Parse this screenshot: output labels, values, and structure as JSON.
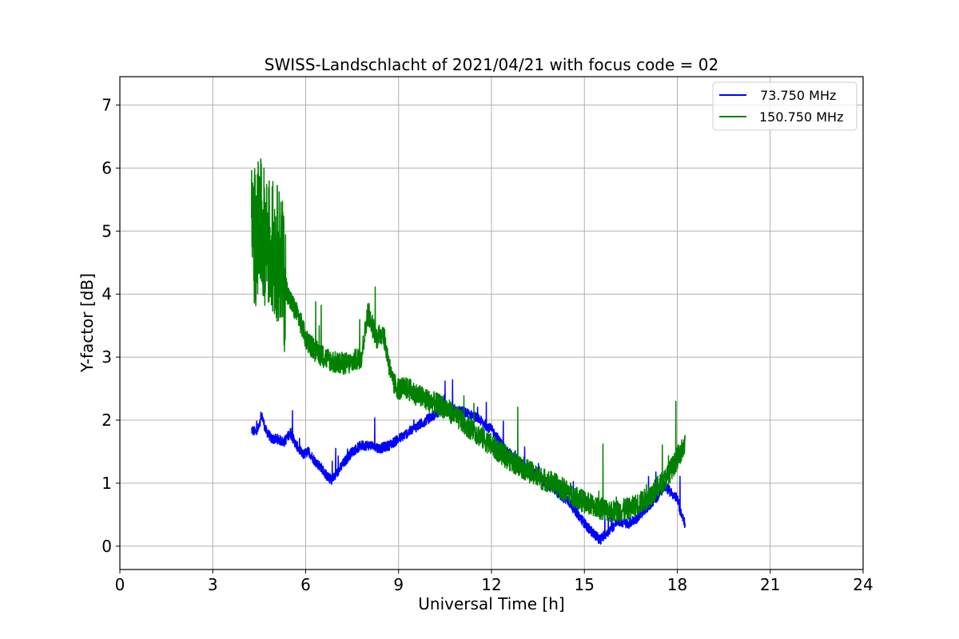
{
  "chart_data": {
    "type": "line",
    "title": "SWISS-Landschlacht of 2021/04/21 with focus code = 02",
    "xlabel": "Universal Time [h]",
    "ylabel": "Y-factor [dB]",
    "xlim": [
      0,
      24
    ],
    "ylim": [
      -0.37,
      7.45
    ],
    "xticks": [
      0,
      3,
      6,
      9,
      12,
      15,
      18,
      21,
      24
    ],
    "yticks": [
      0,
      1,
      2,
      3,
      4,
      5,
      6,
      7
    ],
    "grid": true,
    "legend_position": "top-right",
    "series": [
      {
        "name": " 73.750 MHz",
        "color": "#0000ff",
        "x": [
          4.25,
          4.4,
          4.5,
          4.6,
          4.7,
          4.9,
          5.1,
          5.3,
          5.5,
          5.7,
          5.9,
          6.1,
          6.3,
          6.5,
          6.7,
          6.85,
          7.0,
          7.2,
          7.5,
          7.8,
          8.1,
          8.4,
          8.7,
          9.0,
          9.3,
          9.6,
          9.9,
          10.2,
          10.6,
          11.0,
          11.5,
          12.0,
          12.5,
          13.0,
          13.5,
          14.0,
          14.5,
          14.8,
          15.1,
          15.3,
          15.5,
          15.8,
          16.1,
          16.4,
          16.7,
          17.0,
          17.3,
          17.6,
          17.8,
          18.0,
          18.1,
          18.25
        ],
        "y": [
          1.85,
          1.8,
          1.9,
          2.05,
          1.85,
          1.7,
          1.7,
          1.65,
          1.8,
          1.6,
          1.45,
          1.5,
          1.35,
          1.25,
          1.1,
          1.05,
          1.15,
          1.3,
          1.5,
          1.6,
          1.6,
          1.55,
          1.6,
          1.7,
          1.8,
          1.9,
          2.0,
          2.1,
          2.2,
          2.15,
          2.05,
          1.85,
          1.5,
          1.3,
          1.1,
          0.9,
          0.7,
          0.5,
          0.3,
          0.2,
          0.1,
          0.25,
          0.4,
          0.35,
          0.45,
          0.6,
          0.75,
          0.95,
          0.85,
          0.75,
          0.55,
          0.35
        ]
      },
      {
        "name": "150.750 MHz",
        "color": "#008000",
        "x": [
          4.25,
          4.4,
          4.5,
          4.6,
          4.8,
          5.0,
          5.2,
          5.3,
          5.5,
          5.8,
          6.0,
          6.3,
          6.6,
          7.0,
          7.4,
          7.8,
          8.0,
          8.3,
          8.5,
          8.8,
          9.0,
          9.3,
          9.6,
          10.0,
          10.5,
          11.0,
          11.5,
          12.0,
          12.5,
          13.0,
          13.5,
          14.0,
          14.5,
          15.0,
          15.5,
          16.0,
          16.5,
          17.0,
          17.3,
          17.6,
          17.9,
          18.1,
          18.25
        ],
        "y": [
          5.0,
          4.9,
          5.1,
          5.0,
          4.8,
          4.7,
          4.6,
          4.2,
          3.9,
          3.6,
          3.3,
          3.1,
          3.0,
          2.9,
          2.9,
          3.0,
          3.7,
          3.3,
          3.4,
          2.6,
          2.5,
          2.5,
          2.4,
          2.3,
          2.2,
          2.0,
          1.8,
          1.6,
          1.4,
          1.25,
          1.1,
          1.0,
          0.85,
          0.7,
          0.6,
          0.55,
          0.6,
          0.75,
          0.9,
          1.05,
          1.3,
          1.5,
          1.6
        ]
      }
    ]
  }
}
